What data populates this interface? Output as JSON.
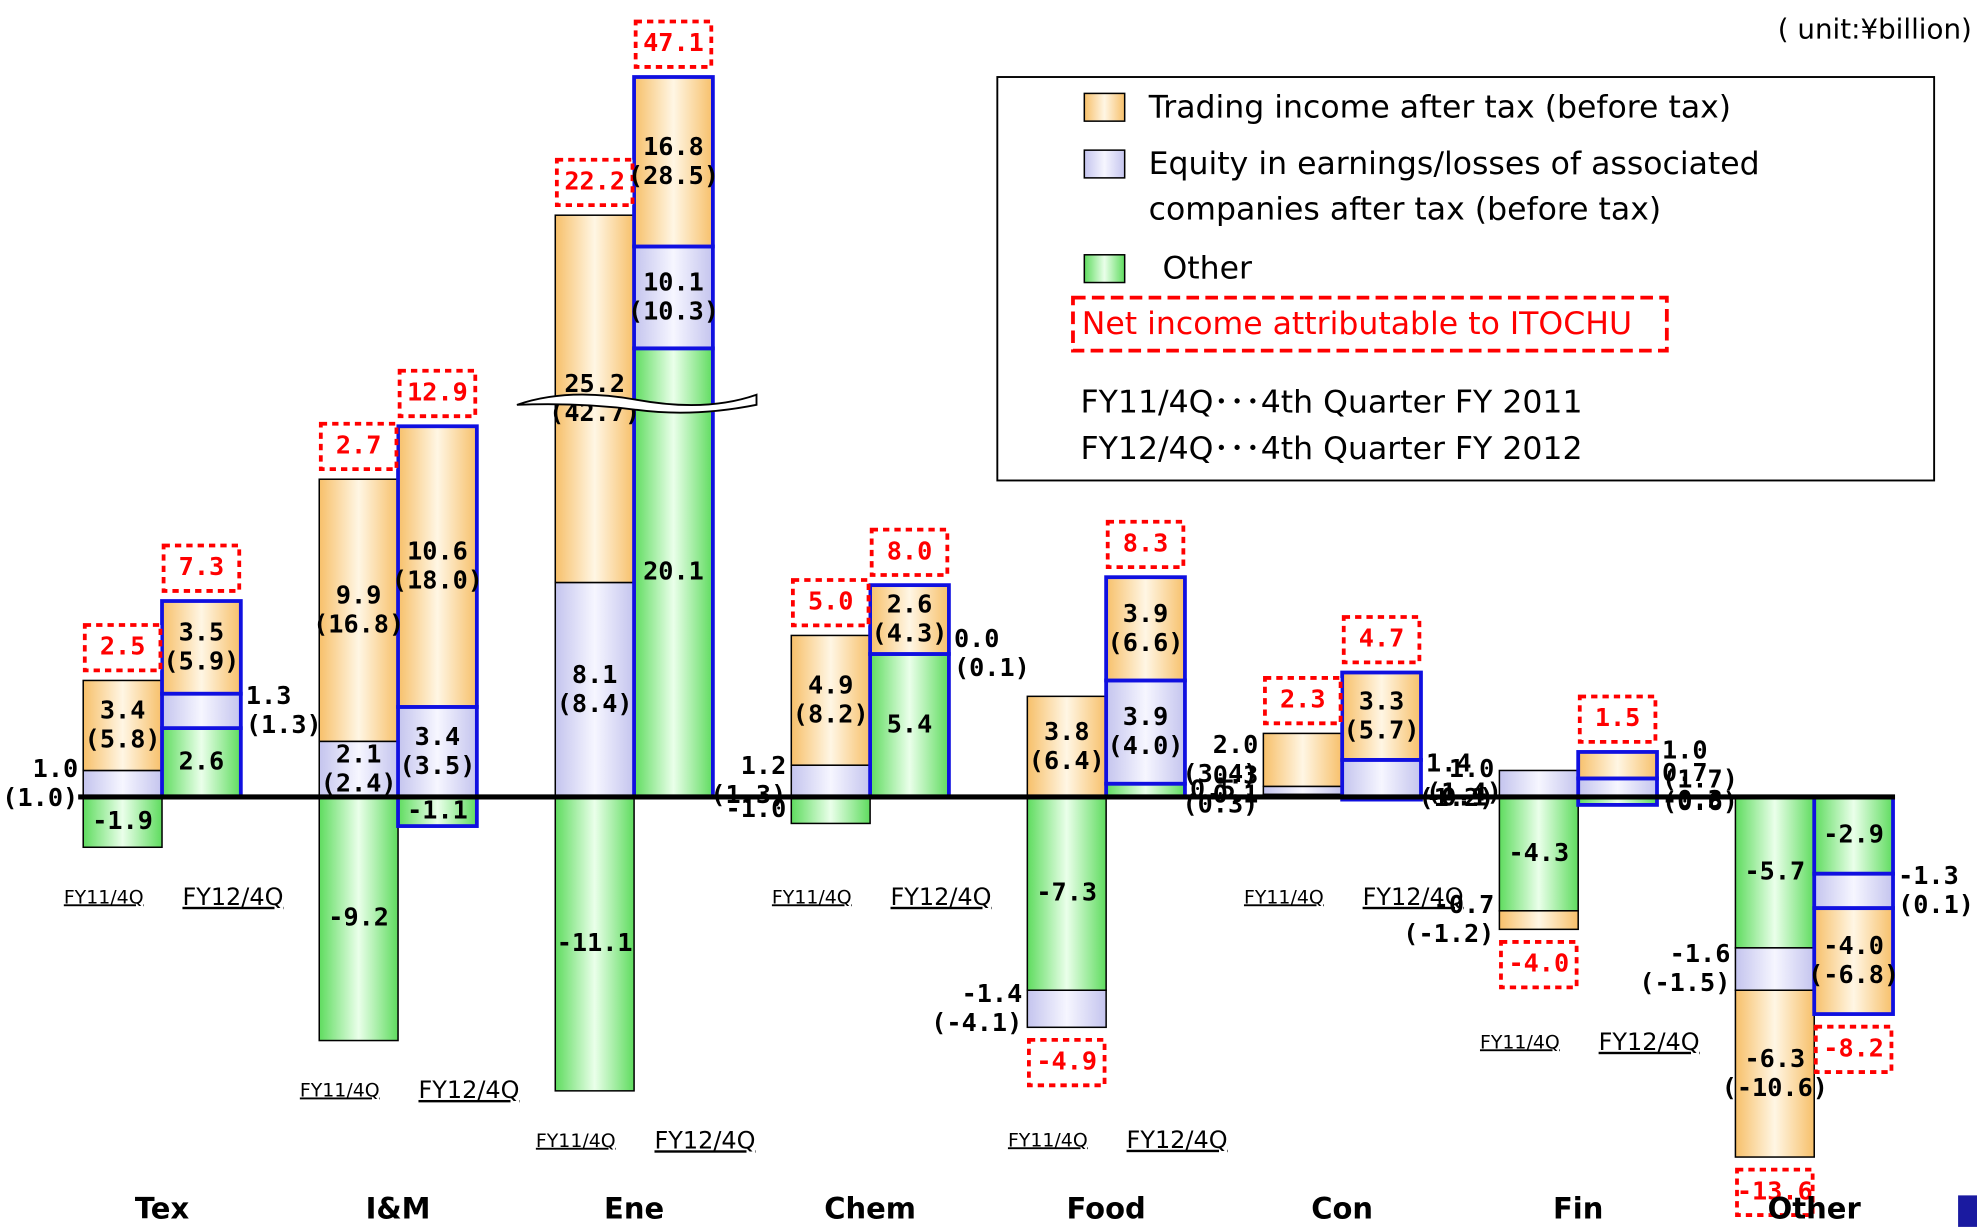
{
  "chart_data": {
    "type": "bar",
    "unit": "( unit:¥billion)",
    "categories": [
      "Tex",
      "I&M",
      "Ene",
      "Chem",
      "Food",
      "Con",
      "Fin",
      "Other"
    ],
    "periods": [
      "FY11/4Q",
      "FY12/4Q"
    ],
    "series": [
      {
        "name": "Trading income after tax (before tax)",
        "color": "#f7c06a",
        "values": [
          [
            3.4,
            3.5
          ],
          [
            9.9,
            10.6
          ],
          [
            25.2,
            16.8
          ],
          [
            4.9,
            2.6
          ],
          [
            3.8,
            3.9
          ],
          [
            2.0,
            3.3
          ],
          [
            -0.7,
            1.0
          ],
          [
            -6.3,
            -4.0
          ]
        ],
        "value_labels": [
          [
            "3.4",
            "3.5"
          ],
          [
            "9.9",
            "10.6"
          ],
          [
            "25.2",
            "16.8"
          ],
          [
            "4.9",
            "2.6"
          ],
          [
            "3.8",
            "3.9"
          ],
          [
            "2.0",
            "3.3"
          ],
          [
            "-0.7",
            "1.0"
          ],
          [
            "-6.3",
            "-4.0"
          ]
        ],
        "before_tax_labels": [
          [
            "(5.8)",
            "(5.9)"
          ],
          [
            "(16.8)",
            "(18.0)"
          ],
          [
            "(42.7)",
            "(28.5)"
          ],
          [
            "(8.2)",
            "(4.3)"
          ],
          [
            "(6.4)",
            "(6.6)"
          ],
          [
            "(3.4)",
            "(5.7)"
          ],
          [
            "(-1.2)",
            "(1.7)"
          ],
          [
            "(-10.6)",
            "(-6.8)"
          ]
        ]
      },
      {
        "name": "Equity in earnings/losses of associated companies after tax (before tax)",
        "color": "#c4c4ee",
        "values": [
          [
            1.0,
            1.3
          ],
          [
            2.1,
            3.4
          ],
          [
            8.1,
            10.1
          ],
          [
            1.2,
            0.0
          ],
          [
            -1.4,
            3.9
          ],
          [
            0.3,
            1.4
          ],
          [
            1.0,
            0.7
          ],
          [
            -1.6,
            -1.3
          ]
        ],
        "value_labels": [
          [
            "1.0",
            "1.3"
          ],
          [
            "2.1",
            "3.4"
          ],
          [
            "8.1",
            "10.1"
          ],
          [
            "1.2",
            "0.0"
          ],
          [
            "-1.4",
            "3.9"
          ],
          [
            "0.3",
            "1.4"
          ],
          [
            "1.0",
            "0.7"
          ],
          [
            "-1.6",
            "-1.3"
          ]
        ],
        "before_tax_labels": [
          [
            "(1.0)",
            "(1.3)"
          ],
          [
            "(2.4)",
            "(3.5)"
          ],
          [
            "(8.4)",
            "(10.3)"
          ],
          [
            "(1.3)",
            "(0.1)"
          ],
          [
            "(-4.1)",
            "(4.0)"
          ],
          [
            "(0.3)",
            "(1.4)"
          ],
          [
            "(1.2)",
            "(0.6)"
          ],
          [
            "(-1.5)",
            "(0.1)"
          ]
        ]
      },
      {
        "name": "Other",
        "color": "#5fdc5f",
        "values": [
          [
            -1.9,
            2.6
          ],
          [
            -9.2,
            -1.1
          ],
          [
            -11.1,
            20.1
          ],
          [
            -1.0,
            5.4
          ],
          [
            -7.3,
            0.5
          ],
          [
            0.1,
            -0.1
          ],
          [
            -4.3,
            -0.3
          ],
          [
            -5.7,
            -2.9
          ]
        ],
        "value_labels": [
          [
            "-1.9",
            "2.6"
          ],
          [
            "-9.2",
            "-1.1"
          ],
          [
            "-11.1",
            "20.1"
          ],
          [
            "-1.0",
            "5.4"
          ],
          [
            "-7.3",
            "0.5"
          ],
          [
            "0.1",
            "-0.1"
          ],
          [
            "-4.3",
            "-0.3"
          ],
          [
            "-5.7",
            "-2.9"
          ]
        ]
      }
    ],
    "net_income": {
      "name": "Net income attributable to ITOCHU",
      "color": "#ff0000",
      "values": [
        [
          2.5,
          7.3
        ],
        [
          2.7,
          12.9
        ],
        [
          22.2,
          47.1
        ],
        [
          5.0,
          8.0
        ],
        [
          -4.9,
          8.3
        ],
        [
          2.3,
          4.7
        ],
        [
          -4.0,
          1.5
        ],
        [
          -13.6,
          -8.2
        ]
      ],
      "value_labels": [
        [
          "2.5",
          "7.3"
        ],
        [
          "2.7",
          "12.9"
        ],
        [
          "22.2",
          "47.1"
        ],
        [
          "5.0",
          "8.0"
        ],
        [
          "-4.9",
          "8.3"
        ],
        [
          "2.3",
          "4.7"
        ],
        [
          "-4.0",
          "1.5"
        ],
        [
          "-13.6",
          "-8.2"
        ]
      ]
    },
    "notes": [
      "FY11/4Q･･･4th Quarter FY 2011",
      "FY12/4Q･･･4th Quarter FY 2012"
    ]
  }
}
